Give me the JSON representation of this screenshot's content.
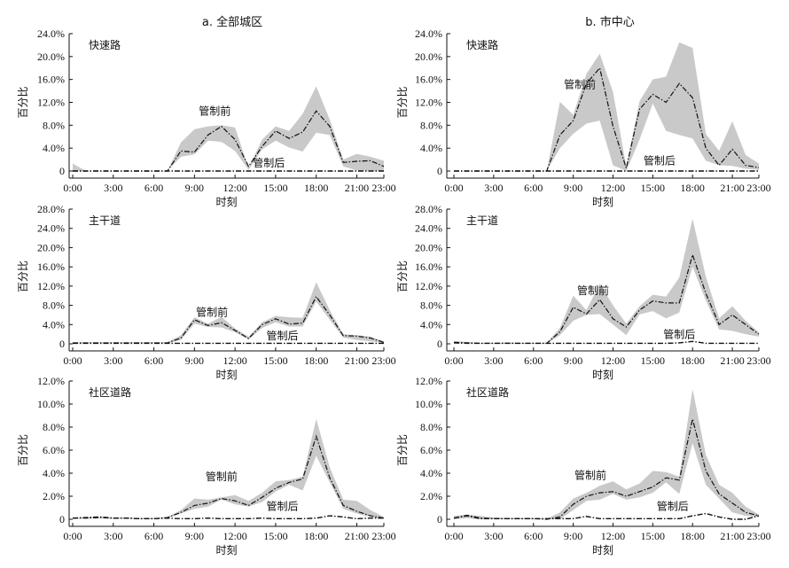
{
  "column_titles": [
    "a. 全部城区",
    "b. 市中心"
  ],
  "xlabel": "时刻",
  "ylabel": "百分比",
  "before_label": "管制前",
  "after_label": "管制后",
  "x_tick_labels": [
    "0:00",
    "3:00",
    "6:00",
    "9:00",
    "12:00",
    "15:00",
    "18:00",
    "21:00",
    "23:00"
  ],
  "colors": {
    "band": "#c9c9c9",
    "line": "#111111"
  },
  "chart_data": [
    {
      "type": "line",
      "panel": "a",
      "title": "快速路",
      "ylim": [
        0,
        24
      ],
      "y_ticks": [
        0,
        4,
        8,
        12,
        16,
        20,
        24
      ],
      "y_tick_labels": [
        "0",
        "4.0%",
        "8.0%",
        "12.0%",
        "16.0%",
        "20.0%",
        "24.0%"
      ],
      "x": [
        0,
        1,
        2,
        3,
        4,
        5,
        6,
        7,
        8,
        9,
        10,
        11,
        12,
        13,
        14,
        15,
        16,
        17,
        18,
        19,
        20,
        21,
        22,
        23
      ],
      "series": [
        {
          "name": "管制前",
          "mean": [
            0,
            0,
            0,
            0,
            0,
            0,
            0,
            0,
            3.5,
            3.3,
            6.3,
            7.8,
            5.5,
            0.8,
            4.3,
            7.0,
            5.7,
            6.8,
            10.5,
            7.8,
            1.5,
            1.7,
            1.8,
            0.8
          ],
          "upper": [
            1.3,
            0,
            0,
            0,
            0,
            0,
            0,
            0,
            5.0,
            7.3,
            7.8,
            8.0,
            7.6,
            0.5,
            5.5,
            7.8,
            7.0,
            10.0,
            14.8,
            9.0,
            2.0,
            3.0,
            2.5,
            1.8
          ],
          "lower": [
            0,
            0,
            0,
            0,
            0,
            0,
            0,
            0,
            2.5,
            2.9,
            5.3,
            5.1,
            3.5,
            0.2,
            3.8,
            5.3,
            4.1,
            3.4,
            6.7,
            6.3,
            0.8,
            0.1,
            0,
            0
          ]
        },
        {
          "name": "管制后",
          "mean": [
            0,
            0,
            0,
            0,
            0,
            0,
            0,
            0,
            0,
            0,
            0,
            0,
            0,
            0,
            0,
            0,
            0,
            0,
            0,
            0,
            0,
            0,
            0,
            0
          ]
        }
      ]
    },
    {
      "type": "line",
      "panel": "b",
      "title": "快速路",
      "ylim": [
        0,
        24
      ],
      "y_ticks": [
        0,
        4,
        8,
        12,
        16,
        20,
        24
      ],
      "y_tick_labels": [
        "0",
        "4.0%",
        "8.0%",
        "12.0%",
        "16.0%",
        "20.0%",
        "24.0%"
      ],
      "x": [
        0,
        1,
        2,
        3,
        4,
        5,
        6,
        7,
        8,
        9,
        10,
        11,
        12,
        13,
        14,
        15,
        16,
        17,
        18,
        19,
        20,
        21,
        22,
        23
      ],
      "series": [
        {
          "name": "管制前",
          "mean": [
            0,
            0,
            0,
            0,
            0,
            0,
            0,
            0,
            6.3,
            8.8,
            15.3,
            18.0,
            7.8,
            0.5,
            10.8,
            13.4,
            12.0,
            15.3,
            12.8,
            4.0,
            1.0,
            3.8,
            1.0,
            0.6
          ],
          "upper": [
            0,
            0,
            0,
            0,
            0,
            0,
            0,
            0,
            12.1,
            9.8,
            17.0,
            20.5,
            13.8,
            0.8,
            12.2,
            16.0,
            16.5,
            22.5,
            21.5,
            6.5,
            3.5,
            8.7,
            2.8,
            1.3
          ],
          "lower": [
            0,
            0,
            0,
            0,
            0,
            0,
            0,
            0,
            4.0,
            6.5,
            8.3,
            8.8,
            1.0,
            0,
            5.5,
            11.8,
            7.0,
            6.3,
            5.7,
            1.8,
            1.0,
            0.9,
            0.4,
            0.2
          ]
        },
        {
          "name": "管制后",
          "mean": [
            0,
            0,
            0,
            0,
            0,
            0,
            0,
            0,
            0,
            0,
            0,
            0,
            0,
            0,
            0,
            0,
            0,
            0,
            0,
            0,
            0,
            0,
            0,
            0
          ]
        }
      ]
    },
    {
      "type": "line",
      "panel": "a",
      "title": "主干道",
      "ylim": [
        0,
        28
      ],
      "y_ticks": [
        0,
        4,
        8,
        12,
        16,
        20,
        24,
        28
      ],
      "y_tick_labels": [
        "0",
        "4.0%",
        "8.0%",
        "12.0%",
        "16.0%",
        "20.0%",
        "24.0%",
        "28.0%"
      ],
      "x": [
        0,
        1,
        2,
        3,
        4,
        5,
        6,
        7,
        8,
        9,
        10,
        11,
        12,
        13,
        14,
        15,
        16,
        17,
        18,
        19,
        20,
        21,
        22,
        23
      ],
      "series": [
        {
          "name": "管制前",
          "mean": [
            0.2,
            0.2,
            0.2,
            0.2,
            0.2,
            0.2,
            0.2,
            0.2,
            1.2,
            5.0,
            3.8,
            4.4,
            2.8,
            1.1,
            4.0,
            5.2,
            4.1,
            4.3,
            9.8,
            6.0,
            1.7,
            1.6,
            1.2,
            0.3
          ],
          "upper": [
            0.3,
            0.3,
            0.3,
            0.3,
            0.3,
            0.3,
            0.3,
            0.3,
            1.8,
            5.5,
            4.2,
            5.6,
            3.2,
            1.5,
            4.5,
            5.8,
            5.5,
            5.4,
            12.8,
            7.0,
            2.0,
            1.8,
            1.5,
            0.5
          ],
          "lower": [
            0.1,
            0.1,
            0.1,
            0.1,
            0.1,
            0.1,
            0.1,
            0.1,
            0.8,
            4.2,
            3.5,
            3.4,
            2.4,
            0.9,
            3.3,
            4.5,
            3.6,
            3.6,
            8.8,
            5.0,
            1.3,
            0.8,
            0.5,
            0.2
          ]
        },
        {
          "name": "管制后",
          "mean": [
            0.1,
            0.1,
            0.1,
            0.1,
            0.1,
            0.1,
            0.1,
            0.1,
            0.1,
            0.1,
            0.1,
            0.1,
            0.1,
            0.1,
            0.1,
            0.1,
            0.1,
            0.1,
            0.1,
            0.1,
            0.1,
            0.1,
            0.1,
            0.1
          ]
        }
      ]
    },
    {
      "type": "line",
      "panel": "b",
      "title": "主干道",
      "ylim": [
        0,
        28
      ],
      "y_ticks": [
        0,
        4,
        8,
        12,
        16,
        20,
        24,
        28
      ],
      "y_tick_labels": [
        "0",
        "4.0%",
        "8.0%",
        "12.0%",
        "16.0%",
        "20.0%",
        "24.0%",
        "28.0%"
      ],
      "x": [
        0,
        1,
        2,
        3,
        4,
        5,
        6,
        7,
        8,
        9,
        10,
        11,
        12,
        13,
        14,
        15,
        16,
        17,
        18,
        19,
        20,
        21,
        22,
        23
      ],
      "series": [
        {
          "name": "管制前",
          "mean": [
            0.3,
            0.2,
            0.1,
            0.1,
            0.1,
            0.1,
            0.1,
            0.1,
            2.5,
            7.6,
            6.2,
            9.2,
            5.2,
            3.5,
            7.0,
            8.9,
            8.5,
            8.5,
            18.5,
            10.5,
            4.0,
            6.0,
            4.0,
            2.0
          ],
          "upper": [
            0.6,
            0.4,
            0.2,
            0.2,
            0.3,
            0.2,
            0.2,
            0.2,
            3.3,
            10.0,
            7.0,
            12.5,
            8.0,
            4.2,
            7.8,
            10.2,
            9.8,
            13.8,
            26.0,
            14.0,
            5.3,
            7.8,
            4.8,
            2.4
          ],
          "lower": [
            0.1,
            0.1,
            0,
            0,
            0,
            0,
            0,
            0,
            1.8,
            4.8,
            6.0,
            6.2,
            4.0,
            1.8,
            6.1,
            6.8,
            5.3,
            6.5,
            16.0,
            9.0,
            3.0,
            2.7,
            2.0,
            1.5
          ]
        },
        {
          "name": "管制后",
          "mean": [
            0.2,
            0.1,
            0.1,
            0.1,
            0.1,
            0.1,
            0.1,
            0.1,
            0.1,
            0.1,
            0.1,
            0.1,
            0.1,
            0.1,
            0.1,
            0.1,
            0.1,
            0.2,
            0.5,
            0.1,
            0.1,
            0.1,
            0.1,
            0.1
          ]
        }
      ]
    },
    {
      "type": "line",
      "panel": "a",
      "title": "社区道路",
      "ylim": [
        0,
        12
      ],
      "y_ticks": [
        0,
        2,
        4,
        6,
        8,
        10,
        12
      ],
      "y_tick_labels": [
        "0",
        "2.0%",
        "4.0%",
        "6.0%",
        "8.0%",
        "10.0%",
        "12.0%"
      ],
      "x": [
        0,
        1,
        2,
        3,
        4,
        5,
        6,
        7,
        8,
        9,
        10,
        11,
        12,
        13,
        14,
        15,
        16,
        17,
        18,
        19,
        20,
        21,
        22,
        23
      ],
      "series": [
        {
          "name": "管制前",
          "mean": [
            0.1,
            0.1,
            0.15,
            0.1,
            0.1,
            0.05,
            0.05,
            0.15,
            0.6,
            1.2,
            1.4,
            1.8,
            1.6,
            1.2,
            1.9,
            2.7,
            3.2,
            3.5,
            7.2,
            3.6,
            1.2,
            0.7,
            0.3,
            0.1
          ],
          "upper": [
            0.15,
            0.15,
            0.2,
            0.15,
            0.15,
            0.1,
            0.1,
            0.2,
            0.8,
            1.8,
            1.7,
            1.9,
            2.1,
            1.6,
            2.3,
            3.3,
            3.4,
            3.7,
            8.7,
            4.5,
            1.7,
            1.6,
            0.8,
            0.2
          ],
          "lower": [
            0.05,
            0.05,
            0.1,
            0.05,
            0.05,
            0,
            0,
            0.1,
            0.5,
            0.9,
            1.1,
            1.7,
            1.3,
            1.1,
            1.5,
            2.4,
            3.0,
            2.5,
            5.5,
            3.2,
            0.9,
            0.5,
            0.2,
            0.05
          ]
        },
        {
          "name": "管制后",
          "mean": [
            0.1,
            0.15,
            0.2,
            0.1,
            0.1,
            0.05,
            0.05,
            0.1,
            0.05,
            0.05,
            0.1,
            0.05,
            0.05,
            0.05,
            0.1,
            0.05,
            0.05,
            0.05,
            0.1,
            0.3,
            0.2,
            0.05,
            0.1,
            0.1
          ]
        }
      ]
    },
    {
      "type": "line",
      "panel": "b",
      "title": "社区道路",
      "ylim": [
        0,
        12
      ],
      "y_ticks": [
        0,
        2,
        4,
        6,
        8,
        10,
        12
      ],
      "y_tick_labels": [
        "0",
        "2.0%",
        "4.0%",
        "6.0%",
        "8.0%",
        "10.0%",
        "12.0%"
      ],
      "x": [
        0,
        1,
        2,
        3,
        4,
        5,
        6,
        7,
        8,
        9,
        10,
        11,
        12,
        13,
        14,
        15,
        16,
        17,
        18,
        19,
        20,
        21,
        22,
        23
      ],
      "series": [
        {
          "name": "管制前",
          "mean": [
            0.1,
            0.35,
            0.1,
            0.05,
            0.05,
            0.05,
            0.05,
            0,
            0.2,
            1.3,
            2.0,
            2.3,
            2.4,
            2.0,
            2.4,
            2.8,
            3.6,
            3.4,
            8.7,
            4.2,
            2.2,
            1.4,
            0.6,
            0.3
          ],
          "upper": [
            0.3,
            0.4,
            0.3,
            0.15,
            0.1,
            0.1,
            0.1,
            0.05,
            0.6,
            1.8,
            2.3,
            2.9,
            3.3,
            2.6,
            3.1,
            4.2,
            4.1,
            3.7,
            11.3,
            5.6,
            3.0,
            2.3,
            1.1,
            0.4
          ],
          "lower": [
            0,
            0.1,
            0,
            0,
            0,
            0,
            0,
            0,
            0,
            0.8,
            1.6,
            1.7,
            2.2,
            1.7,
            1.9,
            2.3,
            3.2,
            2.2,
            6.6,
            3.0,
            1.8,
            0.6,
            0.3,
            0.2
          ]
        },
        {
          "name": "管制后",
          "mean": [
            0.1,
            0.3,
            0.05,
            0.05,
            0.05,
            0.05,
            0.05,
            0.05,
            0.05,
            0.05,
            0.25,
            0.05,
            0.05,
            0.05,
            0.05,
            0.05,
            0.05,
            0.05,
            0.3,
            0.5,
            0.2,
            0,
            0,
            0.3
          ]
        }
      ]
    }
  ]
}
